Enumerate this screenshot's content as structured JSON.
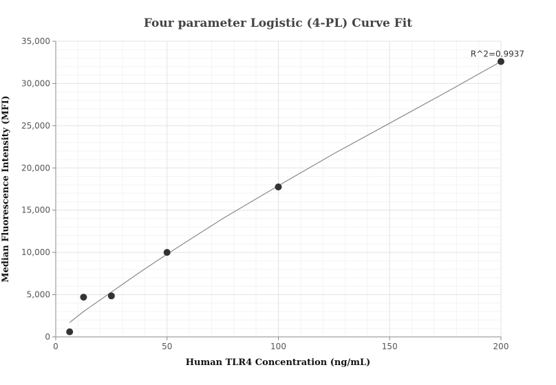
{
  "chart_data": {
    "type": "scatter",
    "title": "Four parameter Logistic (4-PL) Curve Fit",
    "xlabel": "Human TLR4 Concentration (ng/mL)",
    "ylabel": "Median Fluorescence Intensity (MFI)",
    "xlim": [
      0,
      200
    ],
    "ylim": [
      0,
      35000
    ],
    "x_ticks": [
      0,
      50,
      100,
      150,
      200
    ],
    "x_tick_labels": [
      "0",
      "50",
      "100",
      "150",
      "200"
    ],
    "y_ticks": [
      0,
      5000,
      10000,
      15000,
      20000,
      25000,
      30000,
      35000
    ],
    "y_tick_labels": [
      "0",
      "5,000",
      "10,000",
      "15,000",
      "20,000",
      "25,000",
      "30,000",
      "35,000"
    ],
    "grid": true,
    "points": {
      "x": [
        6.25,
        12.5,
        25,
        50,
        100,
        200
      ],
      "y": [
        600,
        4700,
        4850,
        10000,
        17750,
        32600
      ],
      "color": "#333333"
    },
    "fit_curve": {
      "x": [
        6.25,
        12.5,
        25,
        37.5,
        50,
        75,
        100,
        125,
        150,
        175,
        200
      ],
      "y": [
        1700,
        3000,
        5300,
        7600,
        9800,
        14000,
        17900,
        21700,
        25300,
        28900,
        32600
      ],
      "color": "#888888"
    },
    "annotation": {
      "text": "R^2=0.9937",
      "x": 200,
      "y": 32600
    }
  }
}
